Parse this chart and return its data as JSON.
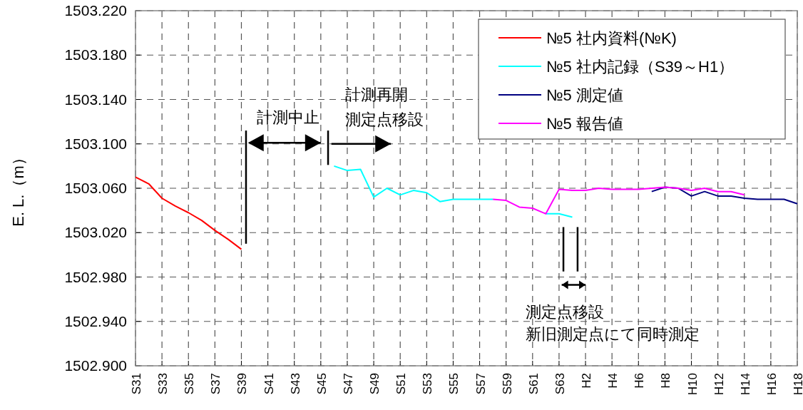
{
  "chart_data": {
    "type": "line",
    "ylabel": "E. L.（m）",
    "categories": [
      "S31",
      null,
      "S33",
      null,
      "S35",
      null,
      "S37",
      null,
      "S39",
      null,
      "S41",
      null,
      "S43",
      null,
      "S45",
      null,
      "S47",
      null,
      "S49",
      null,
      "S51",
      null,
      "S53",
      null,
      "S55",
      null,
      "S57",
      null,
      "S59",
      null,
      "S61",
      null,
      "S63",
      null,
      "H2",
      null,
      "H4",
      null,
      "H6",
      null,
      "H8",
      null,
      "H10",
      null,
      "H12",
      null,
      "H14",
      null,
      "H16",
      null,
      "H18"
    ],
    "ylim": [
      1502.9,
      1503.22
    ],
    "yticks": [
      {
        "value": 1502.9,
        "label": "1502.900"
      },
      {
        "value": 1502.94,
        "label": "1502.940"
      },
      {
        "value": 1502.98,
        "label": "1502.980"
      },
      {
        "value": 1503.02,
        "label": "1503.020"
      },
      {
        "value": 1503.06,
        "label": "1503.060"
      },
      {
        "value": 1503.1,
        "label": "1503.100"
      },
      {
        "value": 1503.14,
        "label": "1503.140"
      },
      {
        "value": 1503.18,
        "label": "1503.180"
      },
      {
        "value": 1503.22,
        "label": "1503.220"
      }
    ],
    "grid": true,
    "legend": "top right",
    "series": [
      {
        "name": "№5 社内資料(№K)",
        "color": "#ff0000",
        "values": [
          1503.07,
          1503.064,
          1503.051,
          1503.044,
          1503.038,
          1503.031,
          1503.022,
          1503.014,
          1503.005,
          null,
          null,
          null,
          null,
          null,
          null,
          null,
          null,
          null,
          null,
          null,
          null,
          null,
          null,
          null,
          null,
          null,
          null,
          null,
          null,
          null,
          null,
          null,
          null,
          null,
          null,
          null,
          null,
          null,
          null,
          null,
          null,
          null,
          null,
          null,
          null,
          null,
          null,
          null,
          null,
          null,
          null
        ]
      },
      {
        "name": "№5 社内記録（S39～H1）",
        "color": "#00ffff",
        "values": [
          null,
          null,
          null,
          null,
          null,
          null,
          null,
          null,
          null,
          null,
          null,
          null,
          null,
          null,
          null,
          1503.08,
          1503.076,
          1503.077,
          1503.052,
          1503.06,
          1503.054,
          1503.058,
          1503.056,
          1503.048,
          1503.05,
          1503.05,
          1503.05,
          1503.05,
          null,
          null,
          null,
          1503.037,
          1503.037,
          1503.034,
          null,
          null,
          null,
          null,
          null,
          null,
          null,
          null,
          null,
          null,
          null,
          null,
          null,
          null,
          null,
          null,
          null
        ]
      },
      {
        "name": "№5 測定値",
        "color": "#000080",
        "values": [
          null,
          null,
          null,
          null,
          null,
          null,
          null,
          null,
          null,
          null,
          null,
          null,
          null,
          null,
          null,
          null,
          null,
          null,
          null,
          null,
          null,
          null,
          null,
          null,
          null,
          null,
          null,
          null,
          null,
          null,
          null,
          null,
          null,
          null,
          null,
          null,
          null,
          null,
          null,
          1503.057,
          1503.061,
          1503.06,
          1503.053,
          1503.057,
          1503.053,
          1503.053,
          1503.051,
          1503.05,
          1503.05,
          1503.05,
          1503.046
        ]
      },
      {
        "name": "№5 報告値",
        "color": "#ff00ff",
        "values": [
          null,
          null,
          null,
          null,
          null,
          null,
          null,
          null,
          null,
          null,
          null,
          null,
          null,
          null,
          null,
          null,
          null,
          null,
          null,
          null,
          null,
          null,
          null,
          null,
          null,
          null,
          null,
          1503.05,
          1503.049,
          1503.043,
          1503.042,
          1503.037,
          1503.059,
          1503.058,
          1503.058,
          1503.06,
          1503.059,
          1503.059,
          1503.059,
          1503.06,
          1503.061,
          1503.06,
          1503.058,
          1503.06,
          1503.057,
          1503.057,
          1503.054,
          null,
          null,
          null,
          null
        ]
      }
    ],
    "annotations": [
      "計測中止",
      "計測再開",
      "測定点移設",
      "測定点移設",
      "新旧測定点にて同時測定"
    ]
  }
}
